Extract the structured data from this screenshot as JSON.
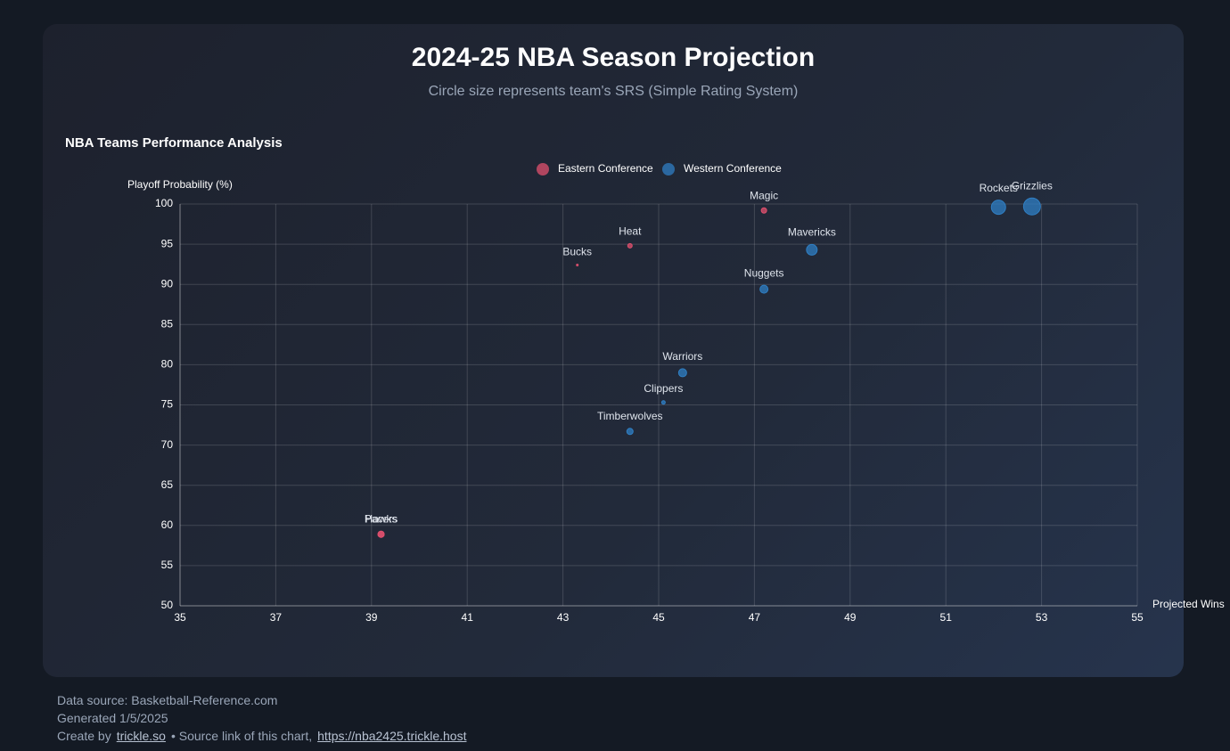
{
  "chart_data": {
    "type": "bubble",
    "title": "2024-25 NBA Season Projection",
    "subtitle": "Circle size represents team's SRS (Simple Rating System)",
    "chart_title": "NBA Teams Performance Analysis",
    "xlabel": "Projected Wins",
    "ylabel": "Playoff Probability (%)",
    "xlim": [
      35,
      55
    ],
    "xticks": [
      35,
      37,
      39,
      41,
      43,
      45,
      47,
      49,
      51,
      53,
      55
    ],
    "ylim": [
      50,
      100
    ],
    "yticks": [
      50,
      55,
      60,
      65,
      70,
      75,
      80,
      85,
      90,
      95,
      100
    ],
    "grid": true,
    "series": [
      {
        "name": "Eastern Conference",
        "color": "#e0506e",
        "labels": [
          "Magic",
          "Heat",
          "Bucks",
          "Hawks",
          "Pacers"
        ],
        "x": [
          47.2,
          44.4,
          43.3,
          39.2,
          39.2
        ],
        "values": [
          99.2,
          94.8,
          92.4,
          58.9,
          58.9
        ],
        "sizes": [
          3,
          2.5,
          1,
          3.5,
          3.5
        ]
      },
      {
        "name": "Western Conference",
        "color": "#2f7fc4",
        "labels": [
          "Rockets",
          "Grizzlies",
          "Mavericks",
          "Nuggets",
          "Warriors",
          "Clippers",
          "Timberwolves"
        ],
        "x": [
          52.1,
          52.8,
          48.2,
          47.2,
          45.5,
          45.1,
          44.4
        ],
        "values": [
          99.6,
          99.7,
          94.3,
          89.4,
          79.0,
          75.3,
          71.7
        ],
        "sizes": [
          8,
          9.5,
          6,
          4.5,
          4.5,
          2,
          3.5
        ]
      }
    ]
  },
  "footer": {
    "source": "Data source: Basketball-Reference.com",
    "generated": "Generated 1/5/2025",
    "create_by": "Create by",
    "creator": "trickle.so",
    "source_link_text": "• Source link of this chart,",
    "link": "https://nba2425.trickle.host"
  }
}
